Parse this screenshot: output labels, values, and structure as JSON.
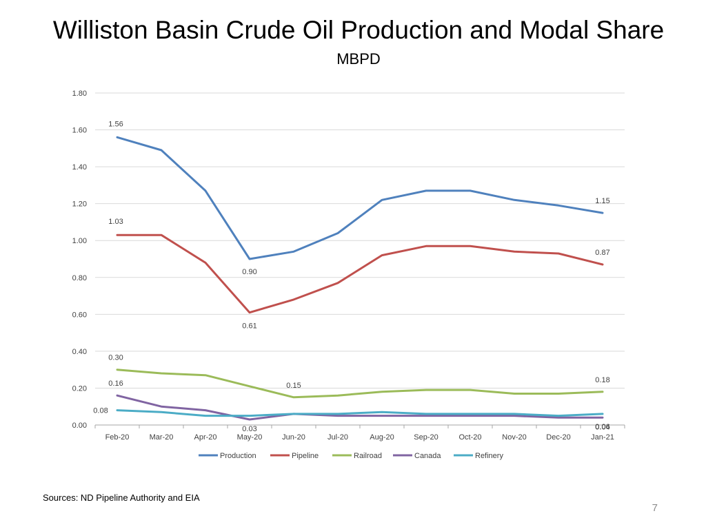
{
  "slide": {
    "title": "Williston Basin Crude Oil Production and Modal Share",
    "subtitle": "MBPD",
    "source": "Sources: ND Pipeline Authority and EIA",
    "page_number": "7"
  },
  "chart_data": {
    "type": "line",
    "title": "",
    "xlabel": "",
    "ylabel": "",
    "categories": [
      "Feb-20",
      "Mar-20",
      "Apr-20",
      "May-20",
      "Jun-20",
      "Jul-20",
      "Aug-20",
      "Sep-20",
      "Oct-20",
      "Nov-20",
      "Dec-20",
      "Jan-21"
    ],
    "ylim": [
      0,
      1.8
    ],
    "yticks": [
      0,
      0.2,
      0.4,
      0.6,
      0.8,
      1.0,
      1.2,
      1.4,
      1.6,
      1.8
    ],
    "ytick_labels": [
      "0.00",
      "0.20",
      "0.40",
      "0.60",
      "0.80",
      "1.00",
      "1.20",
      "1.40",
      "1.60",
      "1.80"
    ],
    "grid": true,
    "legend_position": "bottom",
    "series": [
      {
        "name": "Production",
        "color": "#4f81bd",
        "values": [
          1.56,
          1.49,
          1.27,
          0.9,
          0.94,
          1.04,
          1.22,
          1.27,
          1.27,
          1.22,
          1.19,
          1.15
        ]
      },
      {
        "name": "Pipeline",
        "color": "#c0504d",
        "values": [
          1.03,
          1.03,
          0.88,
          0.61,
          0.68,
          0.77,
          0.92,
          0.97,
          0.97,
          0.94,
          0.93,
          0.87
        ]
      },
      {
        "name": "Railroad",
        "color": "#9bbb59",
        "values": [
          0.3,
          0.28,
          0.27,
          0.21,
          0.15,
          0.16,
          0.18,
          0.19,
          0.19,
          0.17,
          0.17,
          0.18
        ]
      },
      {
        "name": "Canada",
        "color": "#8064a2",
        "values": [
          0.16,
          0.1,
          0.08,
          0.03,
          0.06,
          0.05,
          0.05,
          0.05,
          0.05,
          0.05,
          0.04,
          0.04
        ]
      },
      {
        "name": "Refinery",
        "color": "#4bacc6",
        "values": [
          0.08,
          0.07,
          0.05,
          0.05,
          0.06,
          0.06,
          0.07,
          0.06,
          0.06,
          0.06,
          0.05,
          0.06
        ]
      }
    ],
    "data_labels": [
      {
        "series": "Production",
        "index": 0,
        "text": "1.56"
      },
      {
        "series": "Production",
        "index": 3,
        "text": "0.90"
      },
      {
        "series": "Production",
        "index": 11,
        "text": "1.15"
      },
      {
        "series": "Pipeline",
        "index": 0,
        "text": "1.03"
      },
      {
        "series": "Pipeline",
        "index": 3,
        "text": "0.61"
      },
      {
        "series": "Pipeline",
        "index": 11,
        "text": "0.87"
      },
      {
        "series": "Railroad",
        "index": 0,
        "text": "0.30"
      },
      {
        "series": "Railroad",
        "index": 4,
        "text": "0.15"
      },
      {
        "series": "Railroad",
        "index": 11,
        "text": "0.18"
      },
      {
        "series": "Canada",
        "index": 0,
        "text": "0.16"
      },
      {
        "series": "Canada",
        "index": 3,
        "text": "0.03"
      },
      {
        "series": "Canada",
        "index": 11,
        "text": "0.04"
      },
      {
        "series": "Refinery",
        "index": 0,
        "text": "0.08"
      },
      {
        "series": "Refinery",
        "index": 11,
        "text": "0.06"
      }
    ]
  }
}
